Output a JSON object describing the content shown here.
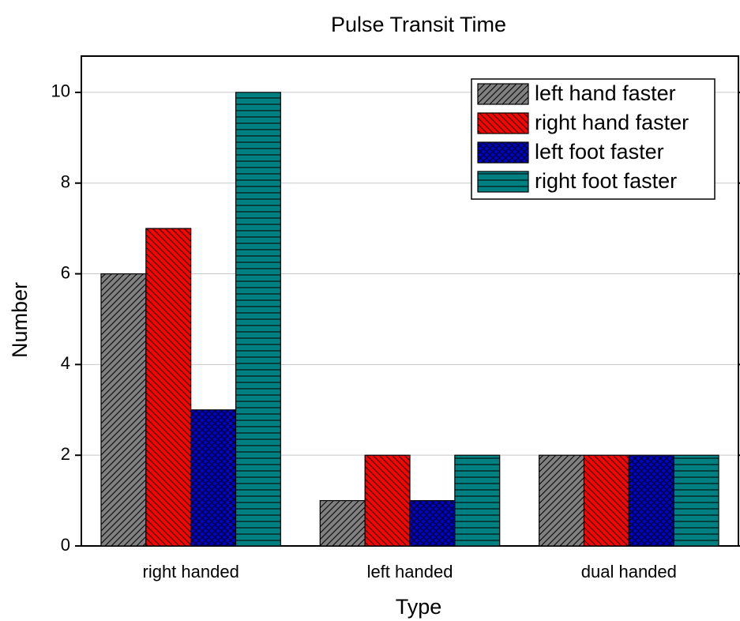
{
  "chart_data": {
    "type": "bar",
    "title": "Pulse Transit Time",
    "x_label": "Type",
    "y_label": "Number",
    "categories": [
      "right handed",
      "left handed",
      "dual handed"
    ],
    "series": [
      {
        "name": "left hand faster",
        "color": "#808080",
        "values": [
          6,
          1,
          2
        ]
      },
      {
        "name": "right hand faster",
        "color": "#ff0000",
        "values": [
          7,
          2,
          2
        ]
      },
      {
        "name": "left foot faster",
        "color": "#0000cc",
        "values": [
          3,
          1,
          2
        ]
      },
      {
        "name": "right foot faster",
        "color": "#008080",
        "values": [
          10,
          2,
          2
        ]
      }
    ],
    "ylim": [
      0,
      10.8
    ],
    "yticks": [
      0,
      2,
      4,
      6,
      8,
      10
    ],
    "grid": true,
    "legend": "upper right"
  }
}
